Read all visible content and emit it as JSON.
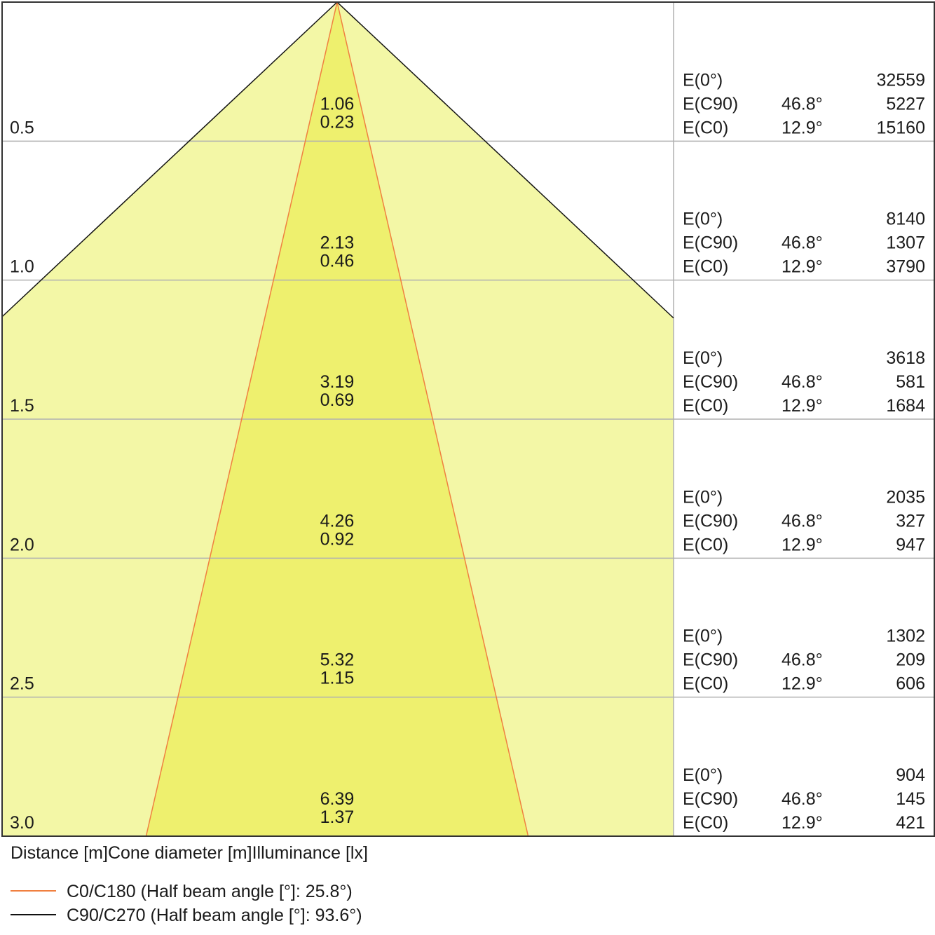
{
  "chart_data": {
    "type": "cone-diagram",
    "unit_distance": "m",
    "caption_parts": [
      "Distance [m]",
      "Cone diameter [m]",
      "Illuminance [lx]"
    ],
    "legend": [
      {
        "label": "C0/C180 (Half beam angle [°]: 25.8°)",
        "color": "#f08040"
      },
      {
        "label": "C90/C270 (Half beam angle [°]: 93.6°)",
        "color": "#111111"
      }
    ],
    "c0_half_angle": 25.8,
    "c90_half_angle": 93.6,
    "row_labels": {
      "e0": "E(0°)",
      "ec90": "E(C90)",
      "ec0": "E(C0)"
    },
    "angle_c90": "46.8°",
    "angle_c0": "12.9°",
    "rows": [
      {
        "distance": "0.5",
        "c90_diameter": "1.06",
        "c0_diameter": "0.23",
        "e0": "32559",
        "ec90": "5227",
        "ec0": "15160"
      },
      {
        "distance": "1.0",
        "c90_diameter": "2.13",
        "c0_diameter": "0.46",
        "e0": "8140",
        "ec90": "1307",
        "ec0": "3790"
      },
      {
        "distance": "1.5",
        "c90_diameter": "3.19",
        "c0_diameter": "0.69",
        "e0": "3618",
        "ec90": "581",
        "ec0": "1684"
      },
      {
        "distance": "2.0",
        "c90_diameter": "4.26",
        "c0_diameter": "0.92",
        "e0": "2035",
        "ec90": "327",
        "ec0": "947"
      },
      {
        "distance": "2.5",
        "c90_diameter": "5.32",
        "c0_diameter": "1.15",
        "e0": "1302",
        "ec90": "209",
        "ec0": "606"
      },
      {
        "distance": "3.0",
        "c90_diameter": "6.39",
        "c0_diameter": "1.37",
        "e0": "904",
        "ec90": "145",
        "ec0": "421"
      }
    ],
    "colors": {
      "outer_fill": "#f3f7a6",
      "inner_fill": "#eef06e",
      "c0_line": "#f08040",
      "c90_line": "#111111",
      "grid": "#b0b0b0",
      "border": "#333333"
    }
  }
}
